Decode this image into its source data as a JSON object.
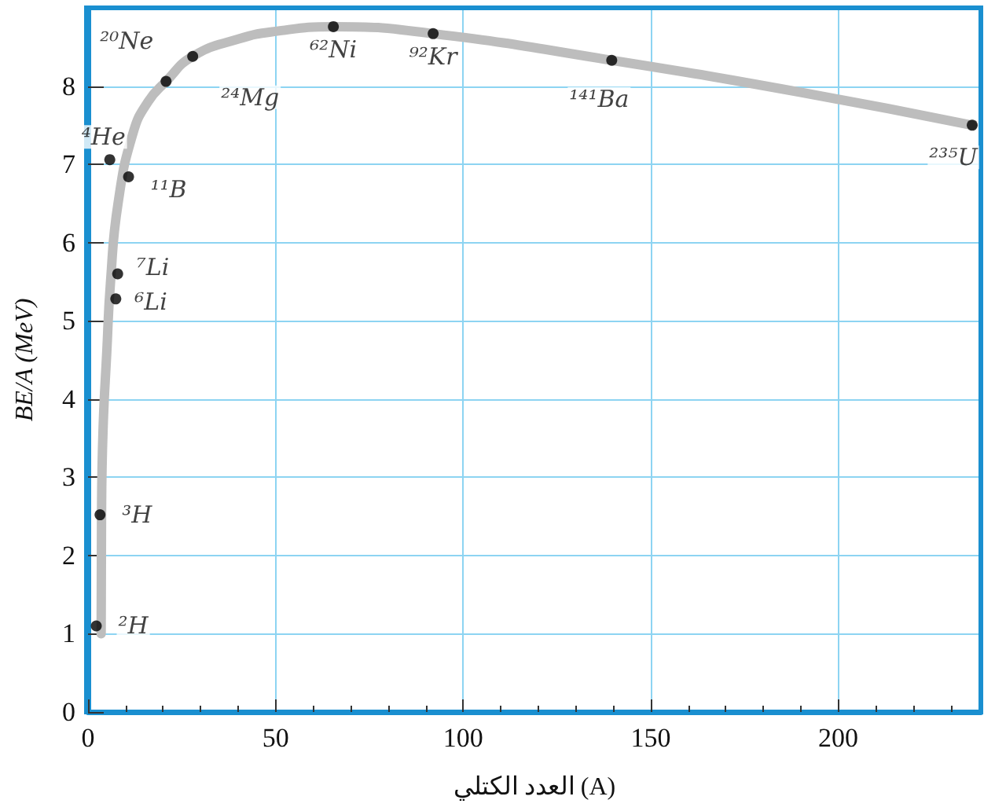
{
  "chart_data": {
    "type": "scatter",
    "xlabel": "العدد الكتلي (A)",
    "ylabel": "BE/A (MeV)",
    "xlim": [
      0,
      238
    ],
    "xticks": [
      0,
      50,
      100,
      150,
      200
    ],
    "ylim": [
      0,
      9
    ],
    "yticks": [
      0,
      1,
      2,
      3,
      4,
      5,
      6,
      7,
      8
    ],
    "grid": true,
    "marker": "circle",
    "series": [
      {
        "type": "line",
        "color": "#bdbdbd",
        "marker": "none",
        "x": [
          3.5,
          3.6,
          4,
          5,
          6,
          8,
          12,
          16,
          20.8,
          27.9,
          40,
          50,
          65.4,
          92,
          139.6,
          190,
          235.7
        ],
        "values": [
          1.0,
          2.5,
          3.6,
          4.6,
          5.5,
          6.5,
          7.4,
          7.8,
          8.06,
          8.38,
          8.6,
          8.7,
          8.76,
          8.67,
          8.33,
          7.92,
          7.5
        ]
      },
      {
        "color": "#000000",
        "x": [
          2.2,
          3.2,
          5.8,
          7.4,
          7.9,
          10.8,
          20.8,
          27.9,
          65.4,
          92,
          139.6,
          235.7
        ],
        "values": [
          1.1,
          2.52,
          7.06,
          5.28,
          5.6,
          6.84,
          8.06,
          8.38,
          8.76,
          8.67,
          8.33,
          7.5
        ]
      }
    ],
    "annotations": [
      {
        "text": "²H",
        "x": 2.2,
        "y": 1.1
      },
      {
        "text": "³H",
        "x": 3.2,
        "y": 2.52
      },
      {
        "text": "⁴He",
        "x": 5.8,
        "y": 7.06
      },
      {
        "text": "⁶Li",
        "x": 7.4,
        "y": 5.28
      },
      {
        "text": "⁷Li",
        "x": 7.9,
        "y": 5.6
      },
      {
        "text": "¹¹B",
        "x": 10.8,
        "y": 6.84
      },
      {
        "text": "²⁰Ne",
        "x": 20.8,
        "y": 8.06
      },
      {
        "text": "²⁴Mg",
        "x": 27.9,
        "y": 8.38
      },
      {
        "text": "⁶²Ni",
        "x": 65.4,
        "y": 8.76
      },
      {
        "text": "⁹²Kr",
        "x": 92,
        "y": 8.67
      },
      {
        "text": "¹⁴¹Ba",
        "x": 139.6,
        "y": 8.33
      },
      {
        "text": "²³⁵U",
        "x": 235.7,
        "y": 7.5
      }
    ]
  }
}
